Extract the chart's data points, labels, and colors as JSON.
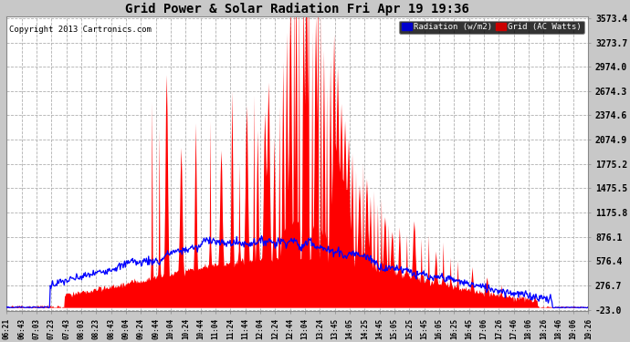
{
  "title": "Grid Power & Solar Radiation Fri Apr 19 19:36",
  "copyright": "Copyright 2013 Cartronics.com",
  "background_color": "#c8c8c8",
  "plot_bg_color": "#ffffff",
  "grid_color": "#b0b0b0",
  "yticks": [
    -23.0,
    276.7,
    576.4,
    876.1,
    1175.8,
    1475.5,
    1775.2,
    2074.9,
    2374.6,
    2674.3,
    2974.0,
    3273.7,
    3573.4
  ],
  "ymin": -23.0,
  "ymax": 3573.4,
  "radiation_color": "#0000ff",
  "grid_power_color": "#ff0000",
  "x_tick_labels": [
    "06:21",
    "06:43",
    "07:03",
    "07:23",
    "07:43",
    "08:03",
    "08:23",
    "08:43",
    "09:04",
    "09:24",
    "09:44",
    "10:04",
    "10:24",
    "10:44",
    "11:04",
    "11:24",
    "11:44",
    "12:04",
    "12:24",
    "12:44",
    "13:04",
    "13:24",
    "13:45",
    "14:05",
    "14:25",
    "14:45",
    "15:05",
    "15:25",
    "15:45",
    "16:05",
    "16:25",
    "16:45",
    "17:06",
    "17:26",
    "17:46",
    "18:06",
    "18:26",
    "18:46",
    "19:06",
    "19:26"
  ]
}
